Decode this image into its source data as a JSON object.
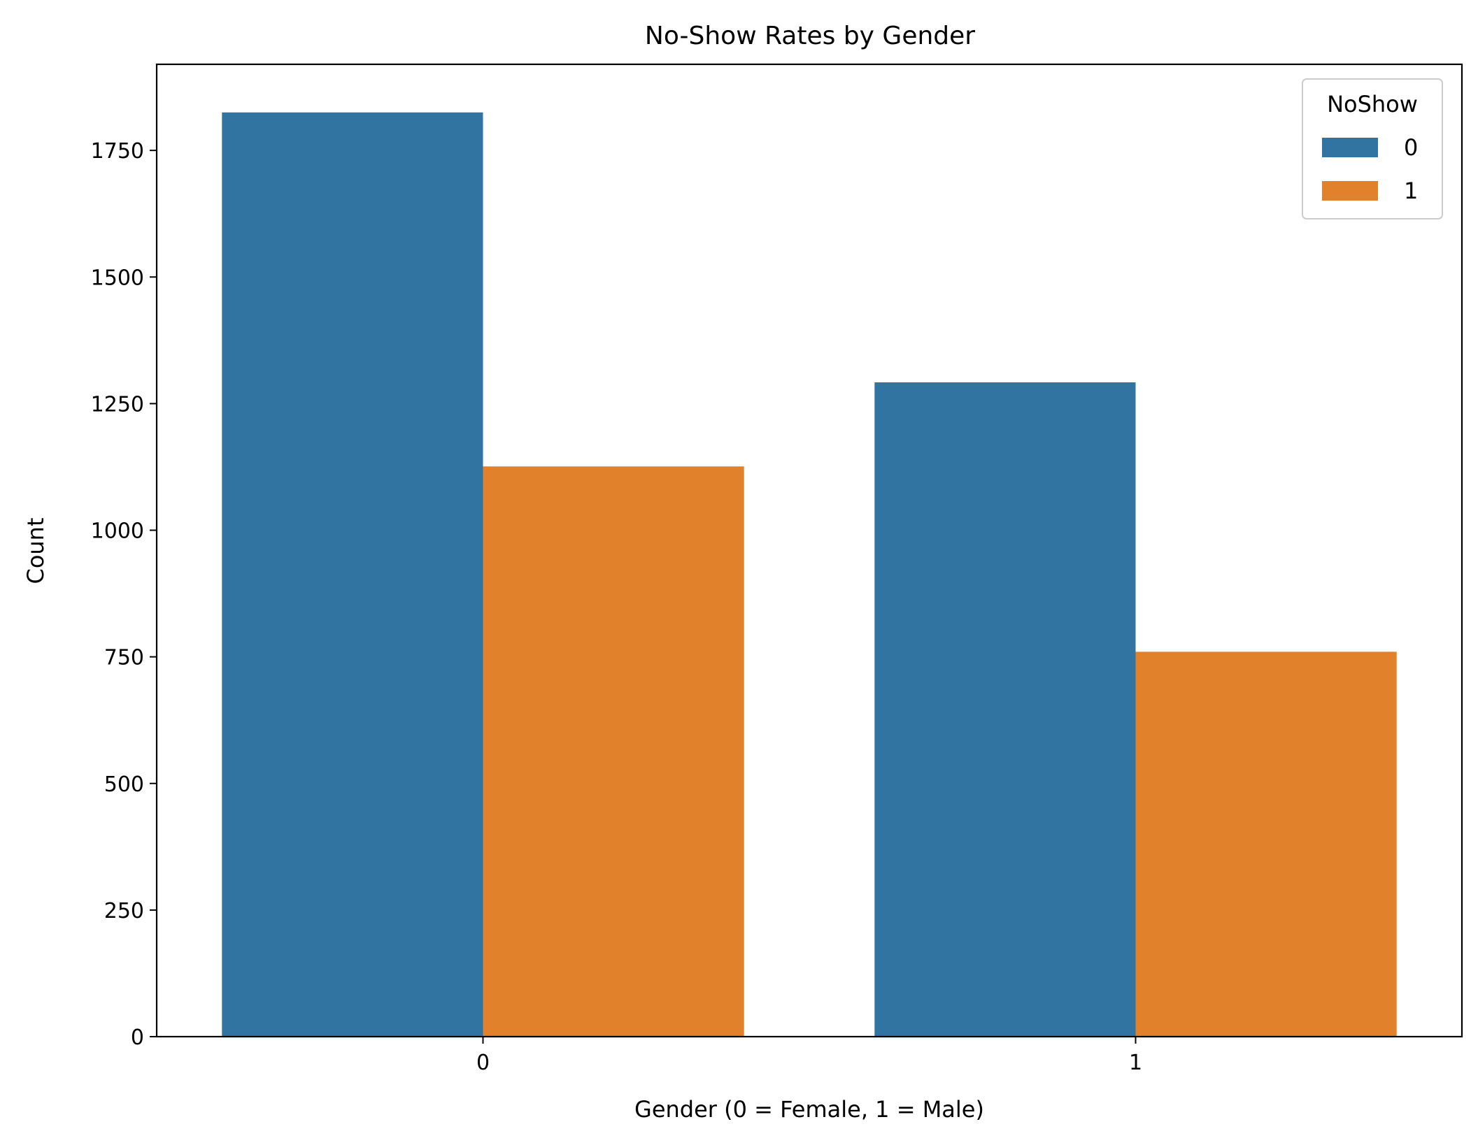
{
  "chart_data": {
    "type": "bar",
    "title": "No-Show Rates by Gender",
    "xlabel": "Gender (0 = Female, 1 = Male)",
    "ylabel": "Count",
    "categories": [
      "0",
      "1"
    ],
    "series": [
      {
        "name": "0",
        "values": [
          1825,
          1292
        ],
        "color": "#3274a1"
      },
      {
        "name": "1",
        "values": [
          1126,
          760
        ],
        "color": "#e1812c"
      }
    ],
    "ylim": [
      0,
      1920
    ],
    "yticks": [
      0,
      250,
      500,
      750,
      1000,
      1250,
      1500,
      1750
    ],
    "legend": {
      "title": "NoShow",
      "placement": "top-right"
    },
    "grid": false
  }
}
